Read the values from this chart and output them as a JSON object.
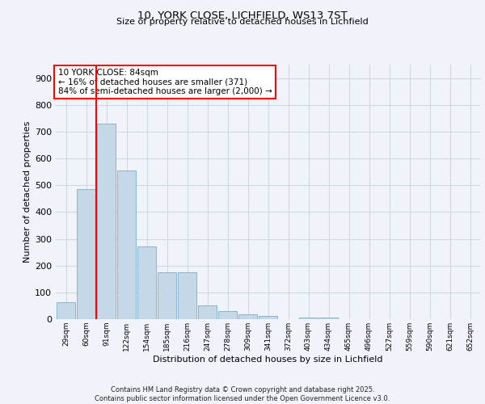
{
  "title_line1": "10, YORK CLOSE, LICHFIELD, WS13 7ST",
  "title_line2": "Size of property relative to detached houses in Lichfield",
  "xlabel": "Distribution of detached houses by size in Lichfield",
  "ylabel": "Number of detached properties",
  "categories": [
    "29sqm",
    "60sqm",
    "91sqm",
    "122sqm",
    "154sqm",
    "185sqm",
    "216sqm",
    "247sqm",
    "278sqm",
    "309sqm",
    "341sqm",
    "372sqm",
    "403sqm",
    "434sqm",
    "465sqm",
    "496sqm",
    "527sqm",
    "559sqm",
    "590sqm",
    "621sqm",
    "652sqm"
  ],
  "values": [
    62,
    485,
    730,
    555,
    272,
    176,
    176,
    50,
    30,
    17,
    13,
    0,
    6,
    7,
    0,
    0,
    0,
    0,
    0,
    0,
    0
  ],
  "bar_color": "#c5d8e8",
  "bar_edge_color": "#7aaec8",
  "grid_color": "#d0d8e0",
  "vline_color": "red",
  "annotation_text": "10 YORK CLOSE: 84sqm\n← 16% of detached houses are smaller (371)\n84% of semi-detached houses are larger (2,000) →",
  "annotation_box_color": "red",
  "ylim": [
    0,
    950
  ],
  "yticks": [
    0,
    100,
    200,
    300,
    400,
    500,
    600,
    700,
    800,
    900
  ],
  "footer_text": "Contains HM Land Registry data © Crown copyright and database right 2025.\nContains public sector information licensed under the Open Government Licence v3.0.",
  "bg_color": "#f0f4fa"
}
